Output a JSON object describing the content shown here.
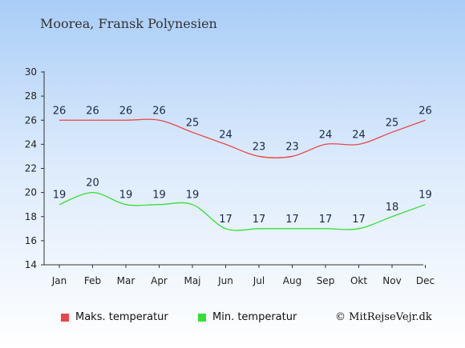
{
  "title": "Moorea, Fransk Polynesien",
  "credit": "© MitRejseVejr.dk",
  "colors": {
    "max": "#e8474a",
    "min": "#35e035",
    "axis": "#333333",
    "label": "#1a2a4a"
  },
  "chart_data": {
    "type": "line",
    "title": "Moorea, Fransk Polynesien",
    "categories": [
      "Jan",
      "Feb",
      "Mar",
      "Apr",
      "Maj",
      "Jun",
      "Jul",
      "Aug",
      "Sep",
      "Okt",
      "Nov",
      "Dec"
    ],
    "ylim": [
      14,
      30
    ],
    "yticks": [
      "14",
      "16",
      "18",
      "20",
      "22",
      "24",
      "26",
      "28",
      "30"
    ],
    "grid": false,
    "legend_position": "bottom",
    "series": [
      {
        "name": "Maks. temperatur",
        "values": [
          26,
          26,
          26,
          26,
          25,
          24,
          23,
          23,
          24,
          24,
          25,
          26
        ]
      },
      {
        "name": "Min. temperatur",
        "values": [
          19,
          20,
          19,
          19,
          19,
          17,
          17,
          17,
          17,
          17,
          18,
          19
        ]
      }
    ]
  }
}
